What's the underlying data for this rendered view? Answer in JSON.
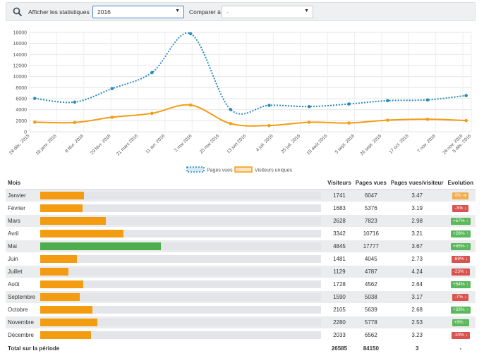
{
  "toolbar": {
    "stats_label": "Afficher les statistiques",
    "year_value": "2016",
    "compare_label": "Comparer à",
    "compare_value": "-"
  },
  "colors": {
    "pages_vues": "#2a8bb9",
    "visiteurs_uniques": "#f39c12",
    "bar_default": "#f39c12",
    "bar_max": "#4cae4c",
    "badge_up": "#5cb85c",
    "badge_down": "#d9534f",
    "badge_neutral": "#f0ad4e"
  },
  "chart_data": {
    "type": "line",
    "x": [
      "28 déc. 2015",
      "18 janv. 2016",
      "8 févr. 2016",
      "29 févr. 2016",
      "21 mars 2016",
      "11 avr. 2016",
      "2 mai 2016",
      "23 mai 2016",
      "13 juin 2016",
      "4 juil. 2016",
      "25 juil. 2016",
      "15 août 2016",
      "5 sept. 2016",
      "26 sept. 2016",
      "17 oct. 2016",
      "7 nov. 2016",
      "28 nov. 2016",
      "5 déc. 2016"
    ],
    "ylim": [
      0,
      18000
    ],
    "yticks": [
      "0",
      "2000",
      "4000",
      "6000",
      "8000",
      "10000",
      "12000",
      "14000",
      "16000",
      "18000"
    ],
    "grid": true,
    "legend_position": "bottom",
    "series": [
      {
        "name": "Pages vues",
        "style": "dotted",
        "points": [
          [
            "2016-01-01",
            6047
          ],
          [
            "2016-02-01",
            5376
          ],
          [
            "2016-03-01",
            7823
          ],
          [
            "2016-04-01",
            10716
          ],
          [
            "2016-05-01",
            17777
          ],
          [
            "2016-06-01",
            4045
          ],
          [
            "2016-07-01",
            4787
          ],
          [
            "2016-08-01",
            4562
          ],
          [
            "2016-09-01",
            5038
          ],
          [
            "2016-10-01",
            5639
          ],
          [
            "2016-11-01",
            5778
          ],
          [
            "2016-12-01",
            6562
          ]
        ]
      },
      {
        "name": "Visiteurs uniques",
        "style": "solid",
        "points": [
          [
            "2016-01-01",
            1741
          ],
          [
            "2016-02-01",
            1683
          ],
          [
            "2016-03-01",
            2628
          ],
          [
            "2016-04-01",
            3342
          ],
          [
            "2016-05-01",
            4845
          ],
          [
            "2016-06-01",
            1481
          ],
          [
            "2016-07-01",
            1129
          ],
          [
            "2016-08-01",
            1728
          ],
          [
            "2016-09-01",
            1590
          ],
          [
            "2016-10-01",
            2105
          ],
          [
            "2016-11-01",
            2280
          ],
          [
            "2016-12-01",
            2033
          ]
        ]
      }
    ]
  },
  "table": {
    "headers": {
      "mois": "Mois",
      "visiteurs": "Visiteurs",
      "pages_vues": "Pages vues",
      "ratio": "Pages vues/visiteur",
      "evolution": "Evolution"
    },
    "bar_max_value": 4845,
    "rows": [
      {
        "mois": "Janvier",
        "visiteurs": "1741",
        "pages_vues": "6047",
        "ratio": "3.47",
        "evolution": "0%",
        "trend": "neutral",
        "arrow": "➜"
      },
      {
        "mois": "Février",
        "visiteurs": "1683",
        "pages_vues": "5376",
        "ratio": "3.19",
        "evolution": "-3%",
        "trend": "down",
        "arrow": "↓"
      },
      {
        "mois": "Mars",
        "visiteurs": "2628",
        "pages_vues": "7823",
        "ratio": "2.98",
        "evolution": "+57%",
        "trend": "up",
        "arrow": "↑"
      },
      {
        "mois": "Avril",
        "visiteurs": "3342",
        "pages_vues": "10716",
        "ratio": "3.21",
        "evolution": "+28%",
        "trend": "up",
        "arrow": "↑"
      },
      {
        "mois": "Mai",
        "visiteurs": "4845",
        "pages_vues": "17777",
        "ratio": "3.67",
        "evolution": "+45%",
        "trend": "up",
        "arrow": "↑"
      },
      {
        "mois": "Juin",
        "visiteurs": "1481",
        "pages_vues": "4045",
        "ratio": "2.73",
        "evolution": "-69%",
        "trend": "down",
        "arrow": "↓"
      },
      {
        "mois": "Juillet",
        "visiteurs": "1129",
        "pages_vues": "4787",
        "ratio": "4.24",
        "evolution": "-23%",
        "trend": "down",
        "arrow": "↓"
      },
      {
        "mois": "Août",
        "visiteurs": "1728",
        "pages_vues": "4562",
        "ratio": "2.64",
        "evolution": "+54%",
        "trend": "up",
        "arrow": "↑"
      },
      {
        "mois": "Septembre",
        "visiteurs": "1590",
        "pages_vues": "5038",
        "ratio": "3.17",
        "evolution": "-7%",
        "trend": "down",
        "arrow": "↓"
      },
      {
        "mois": "Octobre",
        "visiteurs": "2105",
        "pages_vues": "5639",
        "ratio": "2.68",
        "evolution": "+33%",
        "trend": "up",
        "arrow": "↑"
      },
      {
        "mois": "Novembre",
        "visiteurs": "2280",
        "pages_vues": "5778",
        "ratio": "2.53",
        "evolution": "+9%",
        "trend": "up",
        "arrow": "↑"
      },
      {
        "mois": "Décembre",
        "visiteurs": "2033",
        "pages_vues": "6562",
        "ratio": "3.23",
        "evolution": "-10%",
        "trend": "down",
        "arrow": "↓"
      }
    ],
    "total": {
      "label": "Total sur la période",
      "visiteurs": "26585",
      "pages_vues": "84150",
      "ratio": "3",
      "evolution": "-"
    }
  }
}
